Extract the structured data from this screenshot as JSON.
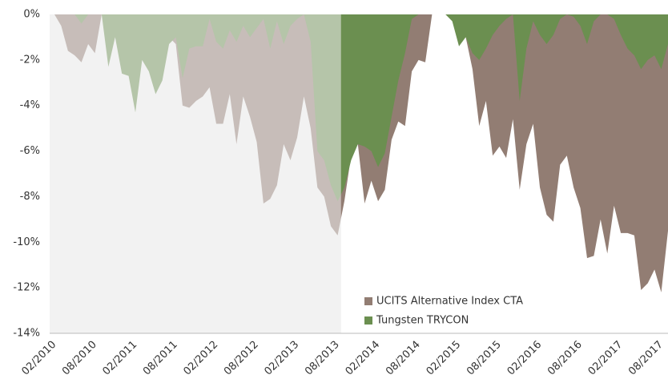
{
  "chart_data": {
    "type": "area",
    "categories": [
      "02/2010",
      null,
      null,
      null,
      null,
      null,
      "08/2010",
      null,
      null,
      null,
      null,
      null,
      "02/2011",
      null,
      null,
      null,
      null,
      null,
      "08/2011",
      null,
      null,
      null,
      null,
      null,
      "02/2012",
      null,
      null,
      null,
      null,
      null,
      "08/2012",
      null,
      null,
      null,
      null,
      null,
      "02/2013",
      null,
      null,
      null,
      null,
      null,
      "08/2013",
      null,
      null,
      null,
      null,
      null,
      "02/2014",
      null,
      null,
      null,
      null,
      null,
      "08/2014",
      null,
      null,
      null,
      null,
      null,
      "02/2015",
      null,
      null,
      null,
      null,
      null,
      "08/2015",
      null,
      null,
      null,
      null,
      null,
      "02/2016",
      null,
      null,
      null,
      null,
      null,
      "08/2016",
      null,
      null,
      null,
      null,
      null,
      "02/2017",
      null,
      null,
      null,
      null,
      null,
      "08/2017",
      null
    ],
    "series": [
      {
        "name": "UCITS Alternative Index CTA",
        "color": "#927d73",
        "values": [
          0,
          -0.5,
          -1.6,
          -1.8,
          -2.1,
          -1.3,
          -1.7,
          0,
          -0.3,
          -0.2,
          -0.5,
          -0.5,
          -0.6,
          -0.4,
          -0.6,
          -0.8,
          -0.5,
          -1.0,
          -1.3,
          -4.0,
          -4.1,
          -3.8,
          -3.6,
          -3.2,
          -4.8,
          -4.8,
          -3.5,
          -5.7,
          -3.6,
          -4.5,
          -5.6,
          -8.3,
          -8.1,
          -7.5,
          -5.7,
          -6.4,
          -5.4,
          -3.6,
          -5.0,
          -7.6,
          -8.0,
          -9.3,
          -9.7,
          -8.2,
          -6.2,
          -5.7,
          -8.3,
          -7.3,
          -8.2,
          -7.7,
          -5.5,
          -4.7,
          -4.9,
          -2.5,
          -2.0,
          -2.1,
          0,
          0,
          0,
          0,
          -0.5,
          -1.0,
          -2.4,
          -4.9,
          -3.8,
          -6.2,
          -5.8,
          -6.3,
          -4.6,
          -7.7,
          -5.7,
          -4.8,
          -7.6,
          -8.8,
          -9.1,
          -6.6,
          -6.2,
          -7.6,
          -8.5,
          -10.7,
          -10.6,
          -9.0,
          -10.5,
          -8.4,
          -9.6,
          -9.6,
          -9.7,
          -12.1,
          -11.8,
          -11.2,
          -12.2,
          -9.5
        ]
      },
      {
        "name": "Tungsten TRYCON",
        "color": "#6b8f50",
        "values": [
          0,
          0,
          0,
          0,
          -0.4,
          0,
          0,
          0,
          -2.3,
          -1.0,
          -2.6,
          -2.7,
          -4.3,
          -2.0,
          -2.5,
          -3.5,
          -2.9,
          -1.3,
          -1.0,
          -2.8,
          -1.5,
          -1.4,
          -1.4,
          -0.2,
          -1.2,
          -1.5,
          -0.7,
          -1.2,
          -0.5,
          -1.0,
          -0.6,
          -0.2,
          -1.5,
          -0.3,
          -1.3,
          -0.5,
          -0.2,
          0,
          -1.2,
          -6.0,
          -6.4,
          -7.5,
          -8.2,
          -7.6,
          -6.4,
          -5.7,
          -5.8,
          -6.0,
          -6.7,
          -6.1,
          -4.5,
          -2.9,
          -1.7,
          -0.2,
          0,
          0,
          0,
          0,
          0,
          -0.3,
          -1.4,
          -1.0,
          -1.7,
          -2.0,
          -1.5,
          -0.9,
          -0.5,
          -0.2,
          0,
          -3.8,
          -1.5,
          -0.3,
          -0.9,
          -1.3,
          -0.9,
          -0.2,
          0,
          -0.1,
          -0.5,
          -1.3,
          -0.3,
          0,
          0,
          -0.2,
          -0.9,
          -1.5,
          -1.8,
          -2.4,
          -2.0,
          -1.8,
          -2.4,
          -1.3
        ]
      }
    ],
    "ylim": [
      -14,
      0
    ],
    "yticks": [
      {
        "value": 0,
        "label": "0%"
      },
      {
        "value": -2,
        "label": "-2%"
      },
      {
        "value": -4,
        "label": "-4%"
      },
      {
        "value": -6,
        "label": "-6%"
      },
      {
        "value": -8,
        "label": "-8%"
      },
      {
        "value": -10,
        "label": "-10%"
      },
      {
        "value": -12,
        "label": "-12%"
      },
      {
        "value": -14,
        "label": "-14%"
      }
    ],
    "grid": false
  }
}
